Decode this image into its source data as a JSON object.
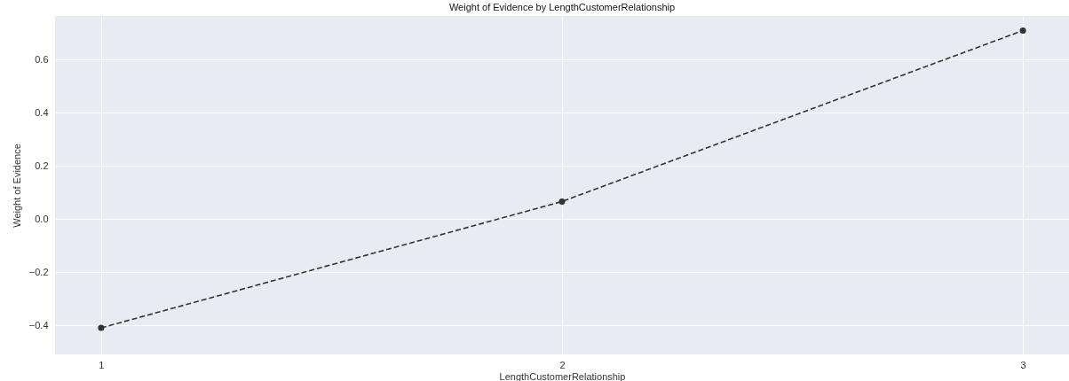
{
  "chart_data": {
    "type": "line",
    "title": "Weight of Evidence by LengthCustomerRelationship",
    "xlabel": "LengthCustomerRelationship",
    "ylabel": "Weight of Evidence",
    "x": [
      1,
      2,
      3
    ],
    "series": [
      {
        "color": "#333333",
        "values": [
          -0.41,
          0.066,
          0.71
        ]
      }
    ],
    "xlim": [
      0.9,
      3.1
    ],
    "xticks": [
      1,
      2,
      3
    ],
    "ylim": [
      -0.51,
      0.765
    ],
    "yticks": [
      -0.4,
      -0.2,
      {
        "value": 0,
        "label": "0.0"
      },
      0.2,
      0.4,
      0.6
    ],
    "grid": true,
    "marker": "circle",
    "line_style": "dashed"
  }
}
